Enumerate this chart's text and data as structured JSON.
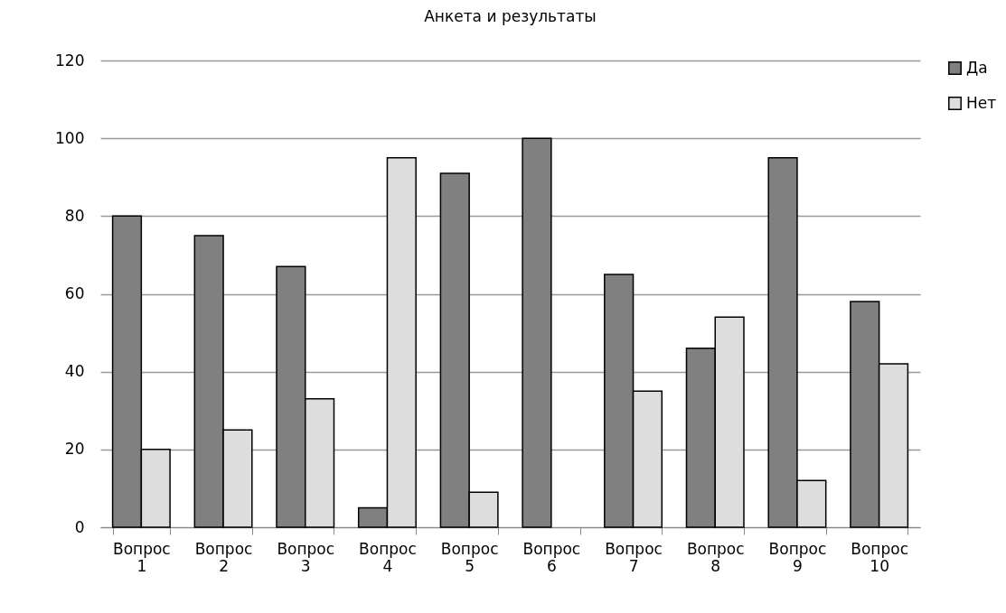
{
  "chart_data": {
    "type": "bar",
    "title": "Анкета и результаты",
    "categories": [
      "Вопрос 1",
      "Вопрос 2",
      "Вопрос 3",
      "Вопрос 4",
      "Вопрос 5",
      "Вопрос 6",
      "Вопрос 7",
      "Вопрос 8",
      "Вопрос 9",
      "Вопрос 10"
    ],
    "series": [
      {
        "name": "Да",
        "color": "#808080",
        "values": [
          80,
          75,
          67,
          5,
          91,
          100,
          65,
          46,
          95,
          58
        ]
      },
      {
        "name": "Нет",
        "color": "#dddddd",
        "values": [
          20,
          25,
          33,
          95,
          9,
          0,
          35,
          54,
          12,
          42
        ]
      }
    ],
    "ylim": [
      0,
      120
    ],
    "yticks": [
      0,
      20,
      40,
      60,
      80,
      100,
      120
    ],
    "grid": "y",
    "legend": "right"
  }
}
